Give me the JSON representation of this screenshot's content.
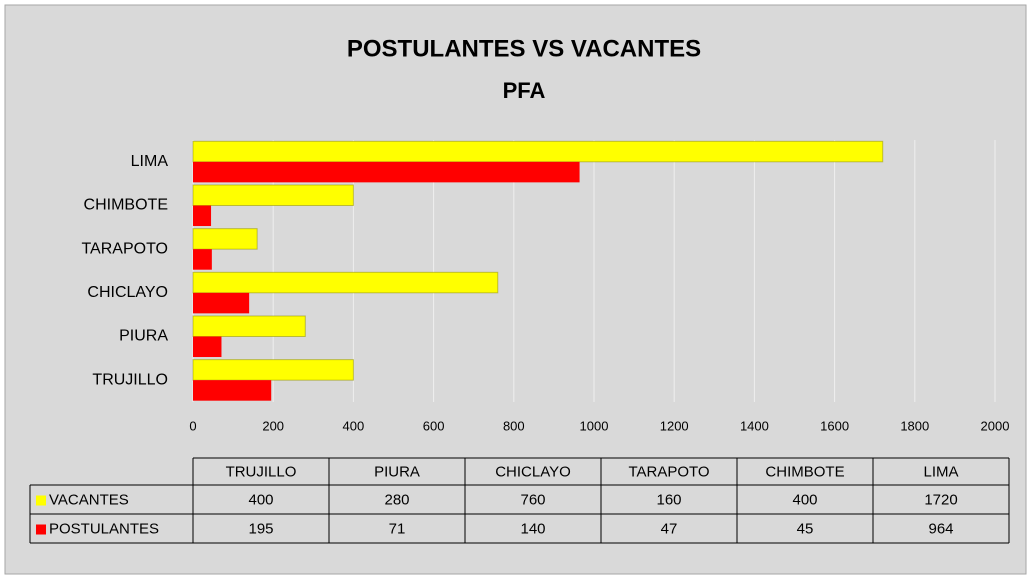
{
  "chart_data": {
    "type": "barh",
    "title": "POSTULANTES VS VACANTES",
    "subtitle": "PFA",
    "categories": [
      "TRUJILLO",
      "PIURA",
      "CHICLAYO",
      "TARAPOTO",
      "CHIMBOTE",
      "LIMA"
    ],
    "series": [
      {
        "name": "VACANTES",
        "color": "#ffff00",
        "values": [
          400,
          280,
          760,
          160,
          400,
          1720
        ]
      },
      {
        "name": "POSTULANTES",
        "color": "#ff0000",
        "values": [
          195,
          71,
          140,
          47,
          45,
          964
        ]
      }
    ],
    "xlim": [
      0,
      2000
    ],
    "xticks": [
      0,
      200,
      400,
      600,
      800,
      1000,
      1200,
      1400,
      1600,
      1800,
      2000
    ],
    "grid": true,
    "data_table": true
  }
}
